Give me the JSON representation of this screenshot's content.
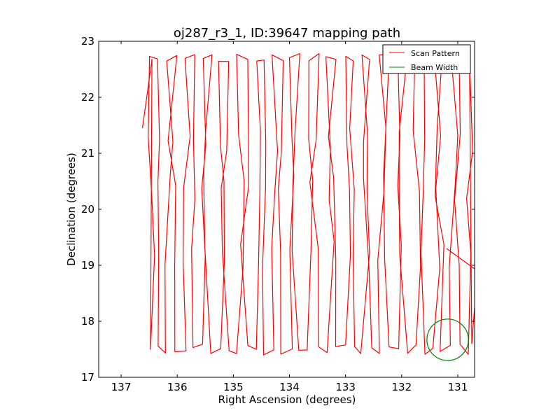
{
  "chart_data": {
    "type": "line",
    "title": "oj287_r3_1, ID:39647 mapping path",
    "xlabel": "Right Ascension (degrees)",
    "ylabel": "Declination (degrees)",
    "xlim": [
      137.4,
      130.7
    ],
    "ylim": [
      17,
      23
    ],
    "x_ticks": [
      "137",
      "136",
      "135",
      "134",
      "133",
      "132",
      "131"
    ],
    "y_ticks": [
      "17",
      "18",
      "19",
      "20",
      "21",
      "22",
      "23"
    ],
    "grid": false,
    "legend_position": "top-right",
    "series": [
      {
        "name": "Scan Pattern",
        "color": "#ff0000",
        "kind": "raster-scan",
        "ra_range": [
          130.7,
          136.6
        ],
        "dec_range": [
          17.25,
          22.9
        ],
        "row_centers": [
          22.7,
          21.2,
          20.45,
          19.25,
          17.5
        ]
      },
      {
        "name": "Beam Width",
        "color": "#008000",
        "kind": "circle",
        "center": [
          131.18,
          17.67
        ],
        "radius": 0.37
      }
    ]
  }
}
